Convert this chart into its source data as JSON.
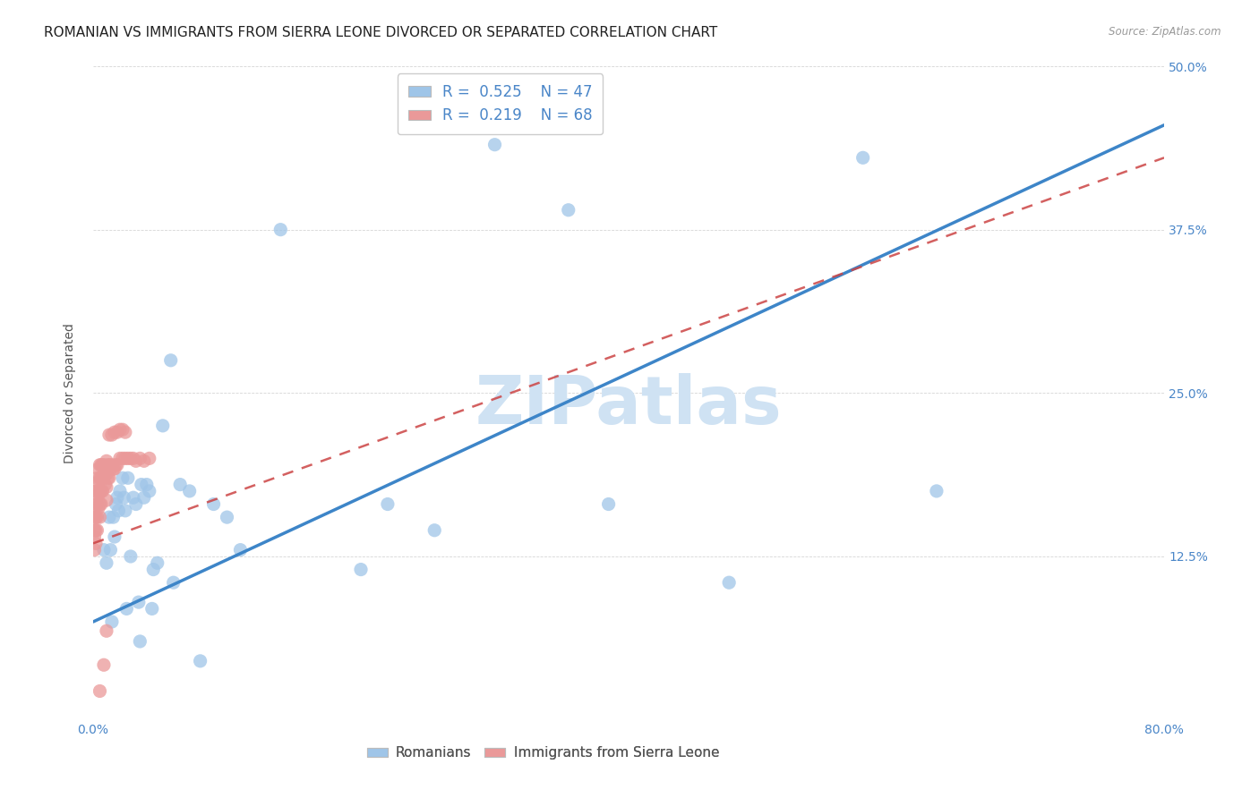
{
  "title": "ROMANIAN VS IMMIGRANTS FROM SIERRA LEONE DIVORCED OR SEPARATED CORRELATION CHART",
  "source_text": "Source: ZipAtlas.com",
  "ylabel": "Divorced or Separated",
  "xlim": [
    0,
    0.8
  ],
  "ylim": [
    0,
    0.5
  ],
  "xticks": [
    0.0,
    0.1,
    0.2,
    0.3,
    0.4,
    0.5,
    0.6,
    0.7,
    0.8
  ],
  "yticks": [
    0.0,
    0.125,
    0.25,
    0.375,
    0.5
  ],
  "color_blue": "#9fc5e8",
  "color_pink": "#ea9999",
  "color_line_blue": "#3d85c8",
  "color_line_pink": "#cc4444",
  "watermark_color": "#cfe2f3",
  "title_fontsize": 11,
  "tick_fontsize": 10,
  "legend_fontsize": 12,
  "blue_x": [
    0.008,
    0.01,
    0.012,
    0.013,
    0.014,
    0.015,
    0.016,
    0.017,
    0.018,
    0.019,
    0.02,
    0.022,
    0.023,
    0.024,
    0.025,
    0.026,
    0.028,
    0.03,
    0.032,
    0.034,
    0.036,
    0.038,
    0.04,
    0.042,
    0.044,
    0.048,
    0.052,
    0.058,
    0.065,
    0.072,
    0.08,
    0.09,
    0.1,
    0.11,
    0.14,
    0.2,
    0.22,
    0.255,
    0.3,
    0.355,
    0.385,
    0.475,
    0.575,
    0.63,
    0.06,
    0.045,
    0.035
  ],
  "blue_y": [
    0.13,
    0.12,
    0.155,
    0.13,
    0.075,
    0.155,
    0.14,
    0.165,
    0.17,
    0.16,
    0.175,
    0.185,
    0.17,
    0.16,
    0.085,
    0.185,
    0.125,
    0.17,
    0.165,
    0.09,
    0.18,
    0.17,
    0.18,
    0.175,
    0.085,
    0.12,
    0.225,
    0.275,
    0.18,
    0.175,
    0.045,
    0.165,
    0.155,
    0.13,
    0.375,
    0.115,
    0.165,
    0.145,
    0.44,
    0.39,
    0.165,
    0.105,
    0.43,
    0.175,
    0.105,
    0.115,
    0.06
  ],
  "pink_x": [
    0.001,
    0.001,
    0.001,
    0.001,
    0.002,
    0.002,
    0.002,
    0.002,
    0.002,
    0.003,
    0.003,
    0.003,
    0.003,
    0.003,
    0.004,
    0.004,
    0.004,
    0.004,
    0.005,
    0.005,
    0.005,
    0.005,
    0.005,
    0.006,
    0.006,
    0.006,
    0.006,
    0.007,
    0.007,
    0.007,
    0.008,
    0.008,
    0.009,
    0.009,
    0.01,
    0.01,
    0.01,
    0.01,
    0.011,
    0.011,
    0.012,
    0.012,
    0.013,
    0.014,
    0.015,
    0.016,
    0.017,
    0.018,
    0.02,
    0.022,
    0.024,
    0.026,
    0.028,
    0.03,
    0.032,
    0.035,
    0.038,
    0.042,
    0.012,
    0.014,
    0.016,
    0.018,
    0.02,
    0.022,
    0.024,
    0.01,
    0.008,
    0.005
  ],
  "pink_y": [
    0.145,
    0.155,
    0.14,
    0.13,
    0.175,
    0.165,
    0.155,
    0.145,
    0.135,
    0.185,
    0.175,
    0.165,
    0.155,
    0.145,
    0.192,
    0.182,
    0.172,
    0.162,
    0.195,
    0.185,
    0.175,
    0.165,
    0.155,
    0.195,
    0.185,
    0.175,
    0.165,
    0.195,
    0.185,
    0.175,
    0.195,
    0.185,
    0.19,
    0.18,
    0.198,
    0.188,
    0.178,
    0.168,
    0.195,
    0.185,
    0.195,
    0.185,
    0.192,
    0.195,
    0.192,
    0.192,
    0.195,
    0.195,
    0.2,
    0.2,
    0.2,
    0.2,
    0.2,
    0.2,
    0.198,
    0.2,
    0.198,
    0.2,
    0.218,
    0.218,
    0.22,
    0.22,
    0.222,
    0.222,
    0.22,
    0.068,
    0.042,
    0.022
  ]
}
